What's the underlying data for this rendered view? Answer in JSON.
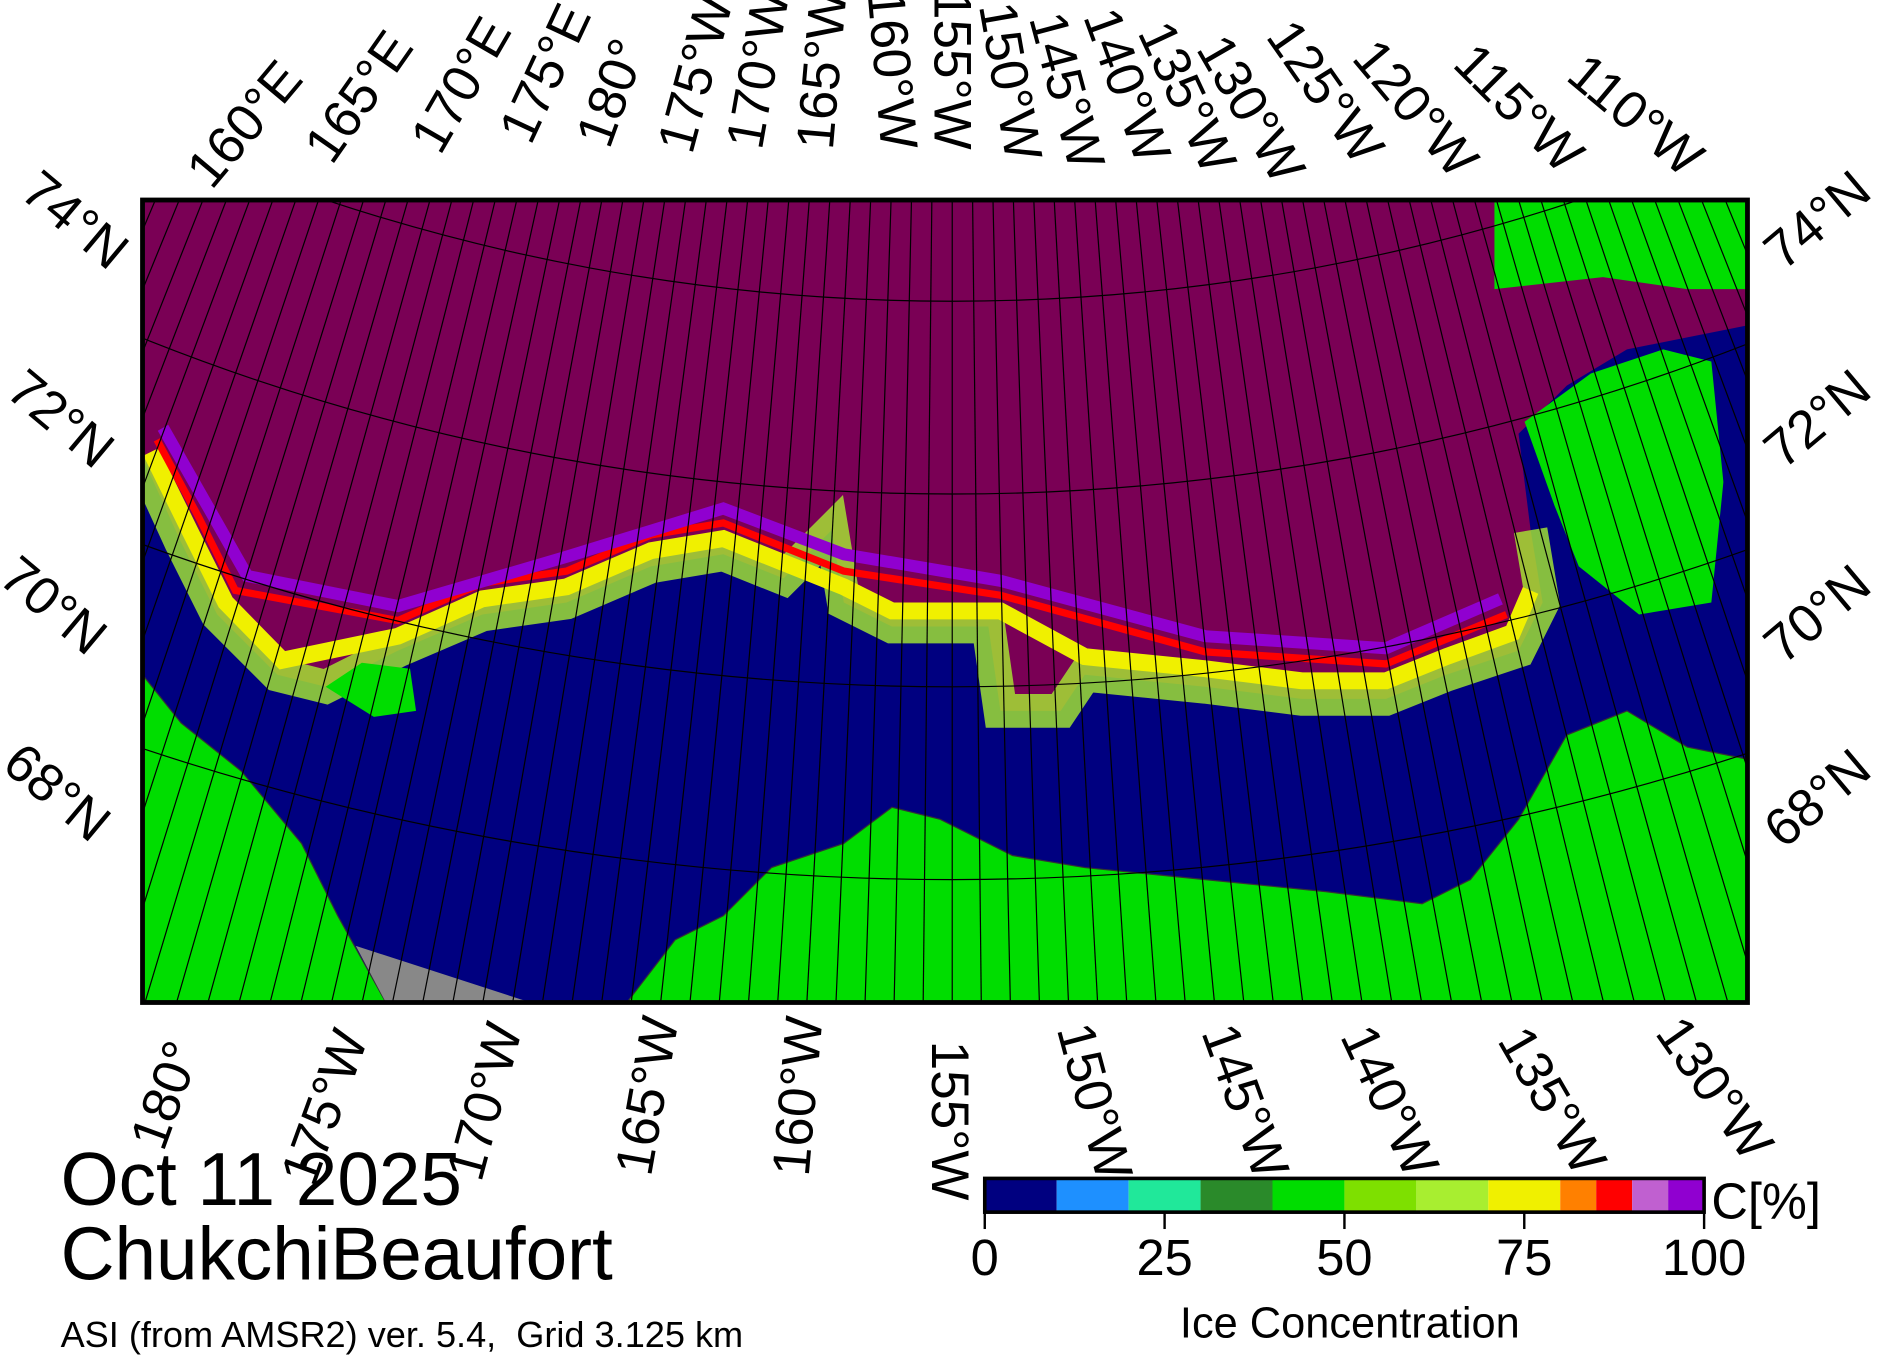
{
  "date": "Oct 11 2025",
  "region": "ChukchiBeaufort",
  "source": "ASI (from AMSR2) ver. 5.4,  Grid 3.125 km",
  "top_labels": [
    "160°E",
    "165°E",
    "170°E",
    "175°E",
    "180°",
    "175°W",
    "170°W",
    "165°W",
    "160°W",
    "155°W",
    "150°W",
    "145°W",
    "140°W",
    "135°W",
    "130°W",
    "125°W",
    "120°W",
    "115°W",
    "110°W"
  ],
  "bottom_labels": [
    "180°",
    "175°W",
    "170°W",
    "165°W",
    "160°W",
    "155°W",
    "150°W",
    "145°W",
    "140°W",
    "135°W",
    "130°W"
  ],
  "left_labels": [
    "74°N",
    "72°N",
    "70°N",
    "68°N"
  ],
  "right_labels": [
    "74°N",
    "72°N",
    "70°N",
    "68°N"
  ],
  "colorbar": {
    "label": "Ice Concentration",
    "unit": "C[%]",
    "lim": [
      0,
      100
    ],
    "ticks": [
      0,
      25,
      50,
      75,
      100
    ],
    "bounds": [
      0,
      10,
      20,
      30,
      40,
      50,
      60,
      70,
      80,
      85,
      90,
      95,
      100
    ],
    "colors": [
      "#000080",
      "#1e90ff",
      "#20e89a",
      "#2a8a2a",
      "#00dd00",
      "#7ee000",
      "#a8ee30",
      "#f0f000",
      "#ff8000",
      "#ff0000",
      "#c060d0",
      "#9000d0"
    ]
  }
}
